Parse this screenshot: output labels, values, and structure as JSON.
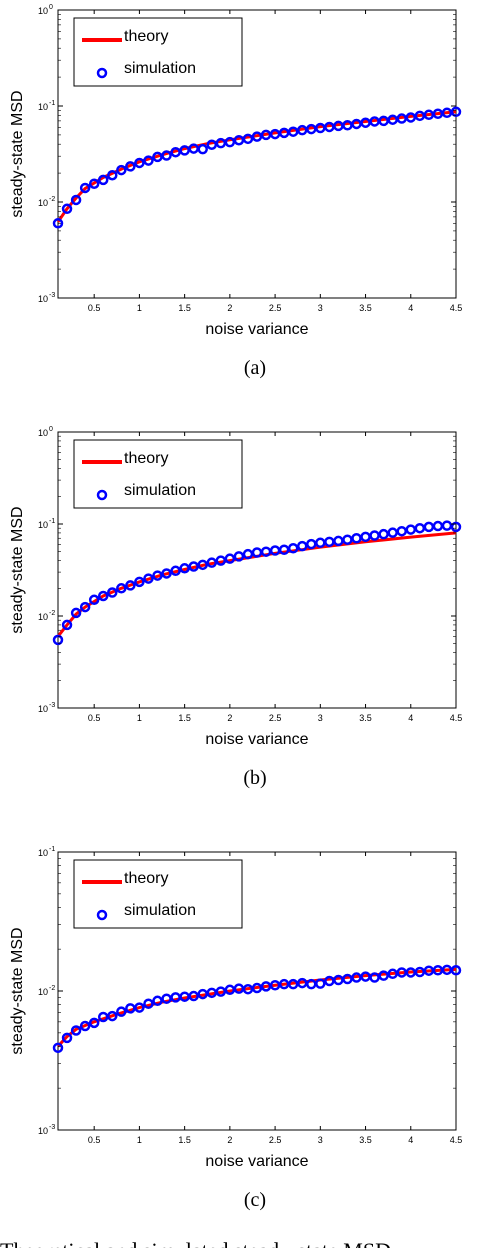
{
  "chart_data": [
    {
      "type": "line",
      "panel_label": "(a)",
      "xlabel": "noise variance",
      "ylabel": "steady-state MSD",
      "xlim": [
        0.1,
        4.5
      ],
      "ylim": [
        0.001,
        1
      ],
      "yscale": "log",
      "xticks": [
        0.5,
        1,
        1.5,
        2,
        2.5,
        3,
        3.5,
        4,
        4.5
      ],
      "xtick_labels": [
        "0.5",
        "1",
        "1.5",
        "2",
        "2.5",
        "3",
        "3.5",
        "4",
        "4.5"
      ],
      "ytick_bases": [
        "10",
        "10",
        "10",
        "10"
      ],
      "ytick_exps": [
        "-3",
        "-2",
        "-1",
        "0"
      ],
      "ytick_values": [
        0.001,
        0.01,
        0.1,
        1
      ],
      "legend": {
        "entries": [
          "theory",
          "simulation"
        ],
        "position": "top-left"
      },
      "series": [
        {
          "name": "theory",
          "style": "line",
          "color": "#ff0000",
          "x": [
            0.1,
            0.2,
            0.3,
            0.4,
            0.6,
            0.8,
            1.0,
            1.25,
            1.5,
            1.75,
            2.0,
            2.5,
            3.0,
            3.5,
            4.0,
            4.5
          ],
          "y": [
            0.0062,
            0.0085,
            0.011,
            0.0138,
            0.018,
            0.022,
            0.0262,
            0.031,
            0.036,
            0.0405,
            0.0445,
            0.0525,
            0.061,
            0.069,
            0.078,
            0.087
          ]
        },
        {
          "name": "simulation",
          "style": "marker",
          "color": "#0000ff",
          "x": [
            0.1,
            0.2,
            0.3,
            0.4,
            0.5,
            0.6,
            0.7,
            0.8,
            0.9,
            1.0,
            1.1,
            1.2,
            1.3,
            1.4,
            1.5,
            1.6,
            1.7,
            1.8,
            1.9,
            2.0,
            2.1,
            2.2,
            2.3,
            2.4,
            2.5,
            2.6,
            2.7,
            2.8,
            2.9,
            3.0,
            3.1,
            3.2,
            3.3,
            3.4,
            3.5,
            3.6,
            3.7,
            3.8,
            3.9,
            4.0,
            4.1,
            4.2,
            4.3,
            4.4,
            4.5
          ],
          "y": [
            0.006,
            0.0085,
            0.0105,
            0.014,
            0.0155,
            0.017,
            0.019,
            0.0215,
            0.0235,
            0.0255,
            0.027,
            0.0295,
            0.0305,
            0.033,
            0.0345,
            0.036,
            0.0355,
            0.0395,
            0.041,
            0.042,
            0.044,
            0.0455,
            0.048,
            0.05,
            0.051,
            0.0525,
            0.054,
            0.056,
            0.0575,
            0.059,
            0.0605,
            0.062,
            0.063,
            0.065,
            0.067,
            0.069,
            0.07,
            0.072,
            0.074,
            0.076,
            0.079,
            0.081,
            0.083,
            0.085,
            0.087
          ]
        }
      ]
    },
    {
      "type": "line",
      "panel_label": "(b)",
      "xlabel": "noise variance",
      "ylabel": "steady-state MSD",
      "xlim": [
        0.1,
        4.5
      ],
      "ylim": [
        0.001,
        1
      ],
      "yscale": "log",
      "xticks": [
        0.5,
        1,
        1.5,
        2,
        2.5,
        3,
        3.5,
        4,
        4.5
      ],
      "xtick_labels": [
        "0.5",
        "1",
        "1.5",
        "2",
        "2.5",
        "3",
        "3.5",
        "4",
        "4.5"
      ],
      "ytick_bases": [
        "10",
        "10",
        "10",
        "10"
      ],
      "ytick_exps": [
        "-3",
        "-2",
        "-1",
        "0"
      ],
      "ytick_values": [
        0.001,
        0.01,
        0.1,
        1
      ],
      "legend": {
        "entries": [
          "theory",
          "simulation"
        ],
        "position": "top-left"
      },
      "series": [
        {
          "name": "theory",
          "style": "line",
          "color": "#ff0000",
          "x": [
            0.1,
            0.2,
            0.3,
            0.4,
            0.6,
            0.8,
            1.0,
            1.25,
            1.5,
            1.75,
            2.0,
            2.5,
            3.0,
            3.5,
            4.0,
            4.5
          ],
          "y": [
            0.006,
            0.008,
            0.0105,
            0.0125,
            0.0165,
            0.02,
            0.0235,
            0.028,
            0.032,
            0.0365,
            0.04,
            0.048,
            0.056,
            0.064,
            0.072,
            0.08
          ]
        },
        {
          "name": "simulation",
          "style": "marker",
          "color": "#0000ff",
          "x": [
            0.1,
            0.2,
            0.3,
            0.4,
            0.5,
            0.6,
            0.7,
            0.8,
            0.9,
            1.0,
            1.1,
            1.2,
            1.3,
            1.4,
            1.5,
            1.6,
            1.7,
            1.8,
            1.9,
            2.0,
            2.1,
            2.2,
            2.3,
            2.4,
            2.5,
            2.6,
            2.7,
            2.8,
            2.9,
            3.0,
            3.1,
            3.2,
            3.3,
            3.4,
            3.5,
            3.6,
            3.7,
            3.8,
            3.9,
            4.0,
            4.1,
            4.2,
            4.3,
            4.4,
            4.5
          ],
          "y": [
            0.0055,
            0.008,
            0.0108,
            0.0125,
            0.015,
            0.0165,
            0.018,
            0.02,
            0.0215,
            0.0235,
            0.0255,
            0.0275,
            0.029,
            0.031,
            0.033,
            0.0345,
            0.036,
            0.038,
            0.04,
            0.042,
            0.0445,
            0.047,
            0.049,
            0.05,
            0.0515,
            0.0525,
            0.0545,
            0.0575,
            0.0605,
            0.0625,
            0.064,
            0.0655,
            0.0675,
            0.07,
            0.0725,
            0.075,
            0.0775,
            0.0805,
            0.0835,
            0.087,
            0.09,
            0.093,
            0.095,
            0.096,
            0.093
          ]
        }
      ]
    },
    {
      "type": "line",
      "panel_label": "(c)",
      "xlabel": "noise variance",
      "ylabel": "steady-state MSD",
      "xlim": [
        0.1,
        4.5
      ],
      "ylim": [
        0.001,
        0.1
      ],
      "yscale": "log",
      "xticks": [
        0.5,
        1,
        1.5,
        2,
        2.5,
        3,
        3.5,
        4,
        4.5
      ],
      "xtick_labels": [
        "0.5",
        "1",
        "1.5",
        "2",
        "2.5",
        "3",
        "3.5",
        "4",
        "4.5"
      ],
      "ytick_bases": [
        "10",
        "10",
        "10"
      ],
      "ytick_exps": [
        "-3",
        "-2",
        "-1"
      ],
      "ytick_values": [
        0.001,
        0.01,
        0.1
      ],
      "legend": {
        "entries": [
          "theory",
          "simulation"
        ],
        "position": "top-left"
      },
      "series": [
        {
          "name": "theory",
          "style": "line",
          "color": "#ff0000",
          "x": [
            0.1,
            0.2,
            0.3,
            0.5,
            0.75,
            1.0,
            1.25,
            1.5,
            2.0,
            2.5,
            3.0,
            3.5,
            4.0,
            4.5
          ],
          "y": [
            0.004,
            0.0047,
            0.0053,
            0.006,
            0.0068,
            0.0076,
            0.0083,
            0.0089,
            0.01,
            0.011,
            0.012,
            0.0129,
            0.0137,
            0.0143
          ]
        },
        {
          "name": "simulation",
          "style": "marker",
          "color": "#0000ff",
          "x": [
            0.1,
            0.2,
            0.3,
            0.4,
            0.5,
            0.6,
            0.7,
            0.8,
            0.9,
            1.0,
            1.1,
            1.2,
            1.3,
            1.4,
            1.5,
            1.6,
            1.7,
            1.8,
            1.9,
            2.0,
            2.1,
            2.2,
            2.3,
            2.4,
            2.5,
            2.6,
            2.7,
            2.8,
            2.9,
            3.0,
            3.1,
            3.2,
            3.3,
            3.4,
            3.5,
            3.6,
            3.7,
            3.8,
            3.9,
            4.0,
            4.1,
            4.2,
            4.3,
            4.4,
            4.5
          ],
          "y": [
            0.0039,
            0.0046,
            0.0052,
            0.0056,
            0.0059,
            0.0065,
            0.0066,
            0.0071,
            0.0075,
            0.0076,
            0.0081,
            0.0085,
            0.0088,
            0.009,
            0.0091,
            0.0092,
            0.0095,
            0.0097,
            0.0099,
            0.0102,
            0.0104,
            0.0103,
            0.0105,
            0.0108,
            0.011,
            0.0112,
            0.0112,
            0.0114,
            0.0112,
            0.0113,
            0.0118,
            0.012,
            0.0122,
            0.0125,
            0.0127,
            0.0125,
            0.0129,
            0.0133,
            0.0136,
            0.0136,
            0.0137,
            0.014,
            0.0141,
            0.0142,
            0.0141
          ]
        }
      ]
    }
  ],
  "caption_fragment": "Theoretical and simulated steady-state MSD"
}
